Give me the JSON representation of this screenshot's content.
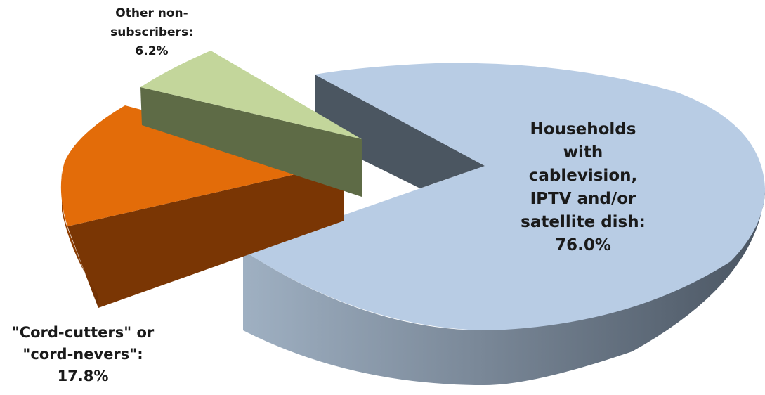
{
  "chart_data": {
    "type": "pie",
    "title": "",
    "slices": [
      {
        "label_lines": [
          "Households",
          "with",
          "cablevision,",
          "IPTV and/or",
          "satellite dish:",
          "76.0%"
        ],
        "value": 76.0,
        "color": "#b8cce4"
      },
      {
        "label_lines": [
          "\"Cord-cutters\" or",
          "\"cord-nevers\":",
          "17.8%"
        ],
        "value": 17.8,
        "color": "#e36c09"
      },
      {
        "label_lines": [
          "Other non-",
          "subscribers:",
          "6.2%"
        ],
        "value": 6.2,
        "color": "#c3d69b"
      }
    ],
    "style": "3d-exploded",
    "legend": "none"
  }
}
